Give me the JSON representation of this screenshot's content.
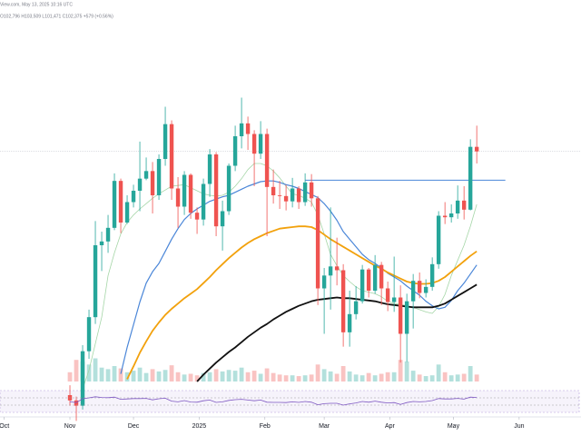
{
  "header": {
    "source": "View.com, May 13, 2025 10:16 UTC",
    "ohlc": "O102,796 H103,509 L101,471 C102,375 +579 (+0.56%)"
  },
  "chart_data": {
    "type": "candlestick",
    "xlim": [
      -11,
      80.4
    ],
    "ylim": [
      72000,
      111000
    ],
    "xticks": [
      {
        "value": -10.33,
        "label": "Oct"
      },
      {
        "value": 0,
        "label": "Nov"
      },
      {
        "value": 10,
        "label": "Dec"
      },
      {
        "value": 20.33,
        "label": "2025"
      },
      {
        "value": 30.67,
        "label": "Feb"
      },
      {
        "value": 40,
        "label": "Mar"
      },
      {
        "value": 50.33,
        "label": "Apr"
      },
      {
        "value": 60.33,
        "label": "May"
      },
      {
        "value": 70.67,
        "label": "Jun"
      }
    ],
    "up_color": "#26a69a",
    "down_color": "#ef5350",
    "open": [
      70200,
      69500,
      68800,
      76000,
      80500,
      90000,
      90500,
      92300,
      98500,
      93000,
      95700,
      97200,
      98800,
      99800,
      96600,
      101400,
      106000,
      97500,
      95100,
      99300,
      94300,
      93400,
      98100,
      102000,
      92500,
      94500,
      100500,
      104400,
      106100,
      104700,
      102100,
      104700,
      97700,
      96600,
      96500,
      95800,
      97500,
      95700,
      98300,
      96200,
      84300,
      86000,
      87200,
      86700,
      78500,
      80900,
      82600,
      86800,
      84000,
      87400,
      84300,
      82500,
      83100,
      78300,
      82600,
      85300,
      83700,
      84500,
      87500,
      93900,
      93700,
      94200,
      95900,
      94700,
      103000
    ],
    "high": [
      71500,
      70000,
      76800,
      81500,
      93200,
      91800,
      94000,
      99500,
      98800,
      96600,
      98000,
      103700,
      101600,
      101000,
      102000,
      108300,
      106500,
      99000,
      99800,
      99500,
      95000,
      98800,
      102700,
      102300,
      95900,
      100800,
      105800,
      109500,
      107000,
      105200,
      106400,
      105400,
      100000,
      98500,
      98000,
      98900,
      97800,
      99500,
      99400,
      96500,
      87000,
      95000,
      91000,
      87500,
      84000,
      84600,
      87400,
      87000,
      88700,
      87800,
      85200,
      88500,
      84700,
      83600,
      86200,
      86400,
      85500,
      88400,
      94500,
      95700,
      95400,
      97900,
      97800,
      104000,
      105800
    ],
    "low": [
      68800,
      66800,
      68300,
      75000,
      79600,
      86600,
      89000,
      92000,
      91600,
      92800,
      95000,
      94500,
      98600,
      94200,
      96000,
      100500,
      96000,
      92300,
      94000,
      93500,
      91500,
      92600,
      96400,
      91200,
      89300,
      94000,
      99800,
      102800,
      102600,
      97800,
      101400,
      91200,
      95500,
      94800,
      94600,
      95000,
      94800,
      95200,
      95100,
      82100,
      78300,
      81500,
      84700,
      76600,
      76600,
      80200,
      82300,
      83100,
      83600,
      82100,
      81300,
      81200,
      74500,
      74600,
      79000,
      83000,
      83100,
      84000,
      86900,
      92800,
      93000,
      93500,
      93400,
      94600,
      100800
    ],
    "close": [
      69500,
      68800,
      76000,
      80500,
      90000,
      90500,
      92300,
      98500,
      93000,
      95700,
      97200,
      98800,
      99800,
      96600,
      101400,
      106000,
      97500,
      95100,
      99300,
      94300,
      93400,
      98100,
      102000,
      92500,
      94500,
      100500,
      104400,
      106100,
      104700,
      102100,
      104700,
      97700,
      96600,
      96500,
      95800,
      97500,
      95700,
      98300,
      96200,
      84300,
      86000,
      87200,
      86700,
      78500,
      80900,
      82600,
      86800,
      84000,
      87400,
      84300,
      82500,
      83100,
      78300,
      82600,
      85300,
      83700,
      84500,
      87500,
      93900,
      93700,
      94200,
      95900,
      94700,
      103000,
      102400
    ],
    "series": [
      {
        "color": "#a5d6a7",
        "width": 0.8,
        "values": [
          null,
          null,
          71000,
          73500,
          77000,
          80500,
          86000,
          89000,
          91500,
          93000,
          94000,
          94800,
          95500,
          96200,
          96800,
          97300,
          97800,
          97900,
          98000,
          97600,
          97200,
          96800,
          96600,
          96500,
          96600,
          97000,
          97800,
          98800,
          100000,
          100800,
          100800,
          100500,
          99800,
          98900,
          97800,
          96800,
          96600,
          96200,
          95700,
          94000,
          91500,
          88800,
          87300,
          86000,
          85200,
          84500,
          84000,
          83800,
          83600,
          83200,
          82600,
          82300,
          82200,
          82000,
          81800,
          81500,
          81200,
          81000,
          81900,
          83500,
          86000,
          88000,
          90000,
          92500,
          95400
        ]
      },
      {
        "color": "#4a86d8",
        "width": 1.2,
        "values": [
          null,
          null,
          null,
          null,
          null,
          null,
          null,
          null,
          73000,
          76500,
          79500,
          82500,
          85000,
          86500,
          87600,
          89200,
          90800,
          92200,
          93400,
          94200,
          94800,
          95300,
          95800,
          96100,
          96400,
          96600,
          97000,
          97400,
          97800,
          98100,
          98400,
          98500,
          98500,
          98300,
          98000,
          97800,
          97500,
          97100,
          96700,
          96300,
          95500,
          94500,
          93300,
          91800,
          90800,
          89800,
          88800,
          88100,
          87600,
          87000,
          86300,
          85800,
          85300,
          84600,
          84000,
          83400,
          82600,
          82000,
          81600,
          81800,
          82700,
          84000,
          85000,
          86200,
          87400
        ]
      },
      {
        "color": "#f2a10c",
        "width": 1.8,
        "values": [
          null,
          null,
          null,
          null,
          null,
          null,
          null,
          null,
          null,
          72300,
          74000,
          75800,
          77300,
          78700,
          79800,
          80800,
          81600,
          82300,
          83000,
          83600,
          84200,
          85000,
          85800,
          86700,
          87500,
          88300,
          89000,
          89700,
          90300,
          90800,
          91200,
          91600,
          91900,
          92200,
          92300,
          92400,
          92500,
          92500,
          92400,
          92000,
          91400,
          90800,
          90300,
          89800,
          89300,
          88800,
          88300,
          87800,
          87300,
          86900,
          86400,
          86000,
          85600,
          85200,
          85000,
          84900,
          84900,
          85000,
          85300,
          85800,
          86500,
          87200,
          87900,
          88600,
          89200
        ]
      },
      {
        "color": "#111111",
        "width": 1.8,
        "values": [
          null,
          null,
          null,
          null,
          null,
          null,
          null,
          null,
          null,
          null,
          null,
          null,
          null,
          null,
          null,
          null,
          null,
          null,
          null,
          null,
          72000,
          72900,
          73700,
          74500,
          75200,
          75900,
          76500,
          77200,
          77900,
          78500,
          79100,
          79600,
          80200,
          80700,
          81200,
          81600,
          82000,
          82300,
          82600,
          82800,
          82900,
          83000,
          83100,
          83000,
          83000,
          82900,
          82800,
          82700,
          82600,
          82400,
          82200,
          82100,
          82000,
          81900,
          81800,
          81800,
          81800,
          81800,
          82000,
          82300,
          82800,
          83300,
          83800,
          84300,
          84800
        ]
      }
    ],
    "level_line": {
      "value": 98600,
      "start": 37,
      "end": 68.5,
      "color": "#4a86d8"
    },
    "volume": [
      12,
      28,
      26,
      22,
      30,
      18,
      16,
      20,
      17,
      12,
      14,
      18,
      11,
      16,
      13,
      15,
      21,
      12,
      9,
      10,
      8,
      11,
      12,
      16,
      13,
      15,
      14,
      18,
      12,
      14,
      10,
      17,
      11,
      9,
      8,
      8,
      7,
      8,
      9,
      22,
      16,
      13,
      10,
      20,
      13,
      9,
      8,
      11,
      8,
      10,
      12,
      12,
      28,
      26,
      14,
      9,
      7,
      8,
      22,
      12,
      8,
      9,
      10,
      20,
      9
    ],
    "volume_max": 40,
    "rsi": [
      48,
      44,
      65,
      70,
      76,
      72,
      71,
      74,
      62,
      64,
      66,
      66,
      67,
      59,
      65,
      68,
      52,
      48,
      55,
      47,
      46,
      54,
      58,
      45,
      48,
      56,
      60,
      62,
      58,
      54,
      58,
      46,
      45,
      45,
      44,
      48,
      45,
      50,
      46,
      32,
      38,
      40,
      40,
      30,
      37,
      42,
      50,
      46,
      52,
      46,
      42,
      44,
      34,
      44,
      50,
      48,
      50,
      55,
      66,
      64,
      64,
      67,
      63,
      74,
      72
    ],
    "rsi_lim": [
      0,
      100
    ],
    "rsi_levels": [
      70,
      30
    ]
  }
}
